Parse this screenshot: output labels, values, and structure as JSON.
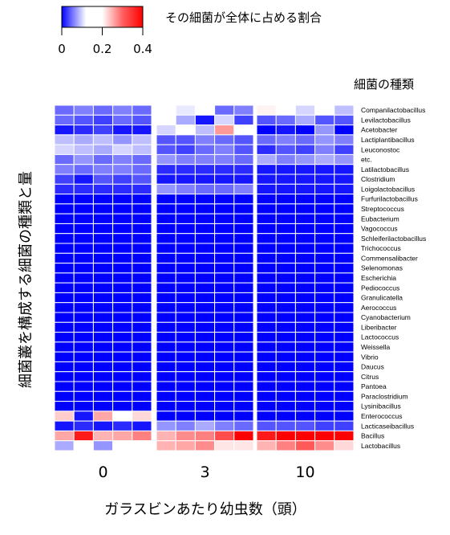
{
  "chart_data": {
    "type": "heatmap",
    "legend": {
      "title": "その細菌が全体に占める割合",
      "ticks": [
        "0",
        "0.2",
        "0.4"
      ],
      "range": [
        0,
        0.4
      ],
      "colors": {
        "low": "#0000ff",
        "mid": "#ffffff",
        "high": "#ff0000"
      }
    },
    "row_header": "細菌の種類",
    "ylabel": "細菌叢を構成する細菌の種類と量",
    "xlabel": "ガラスビンあたり幼虫数（頭）",
    "groups": [
      "0",
      "3",
      "10"
    ],
    "columns_per_group": 5,
    "rows": [
      "Companilactobacillus",
      "Levilactobacillus",
      "Acetobacter",
      "Lactiplantibacillus",
      "Leuconostoc",
      "etc.",
      "Latilactobacillus",
      "Clostridium",
      "Loigolactobacillus",
      "Furfurilactobacillus",
      "Streptococcus",
      "Eubacterium",
      "Vagococcus",
      "Schleiferilactobacillus",
      "Trichococcus",
      "Commensalibacter",
      "Selenomonas",
      "Escherichia",
      "Pediococcus",
      "Granulicatella",
      "Aerococcus",
      "Cyanobacterium",
      "Liberibacter",
      "Lactococcus",
      "Weissella",
      "Vibrio",
      "Daucus",
      "Citrus",
      "Pantoea",
      "Paraclostridium",
      "Lysinibacillus",
      "Enterococcus",
      "Lacticaseibacillus",
      "Bacillus",
      "Lactobacillus"
    ],
    "values": [
      [
        0.05,
        0.06,
        0.05,
        0.06,
        0.05,
        0.12,
        0.11,
        0.18,
        0.05,
        0.06,
        0.21,
        0.12,
        0.1,
        0.12,
        0.09
      ],
      [
        0.05,
        0.04,
        0.03,
        0.05,
        0.04,
        0.12,
        0.08,
        0.01,
        0.1,
        0.03,
        0.04,
        0.05,
        0.08,
        0.04,
        0.04
      ],
      [
        0.01,
        0.02,
        0.03,
        0.01,
        0.01,
        0.1,
        0.13,
        0.09,
        0.28,
        0.18,
        0.0,
        0.01,
        0.0,
        0.07,
        0.0
      ],
      [
        0.09,
        0.08,
        0.09,
        0.07,
        0.09,
        0.04,
        0.04,
        0.06,
        0.05,
        0.04,
        0.05,
        0.06,
        0.05,
        0.07,
        0.06
      ],
      [
        0.1,
        0.09,
        0.08,
        0.1,
        0.09,
        0.04,
        0.03,
        0.05,
        0.06,
        0.04,
        0.02,
        0.04,
        0.03,
        0.06,
        0.03
      ],
      [
        0.05,
        0.07,
        0.05,
        0.06,
        0.05,
        0.07,
        0.06,
        0.06,
        0.06,
        0.05,
        0.08,
        0.06,
        0.07,
        0.08,
        0.07
      ],
      [
        0.06,
        0.05,
        0.06,
        0.06,
        0.05,
        0.02,
        0.02,
        0.02,
        0.02,
        0.02,
        0.01,
        0.01,
        0.01,
        0.01,
        0.01
      ],
      [
        0.03,
        0.01,
        0.04,
        0.03,
        0.04,
        0.01,
        0.01,
        0.01,
        0.01,
        0.01,
        0.01,
        0.01,
        0.01,
        0.01,
        0.01
      ],
      [
        0.02,
        0.02,
        0.02,
        0.02,
        0.02,
        0.07,
        0.06,
        0.05,
        0.05,
        0.06,
        0.01,
        0.01,
        0.01,
        0.01,
        0.01
      ],
      [
        0.0,
        0.0,
        0.0,
        0.0,
        0.0,
        0.0,
        0.0,
        0.0,
        0.0,
        0.0,
        0.0,
        0.0,
        0.0,
        0.0,
        0.0
      ],
      [
        0.0,
        0.0,
        0.0,
        0.0,
        0.0,
        0.0,
        0.0,
        0.0,
        0.0,
        0.0,
        0.0,
        0.0,
        0.0,
        0.0,
        0.0
      ],
      [
        0.0,
        0.0,
        0.0,
        0.0,
        0.0,
        0.0,
        0.0,
        0.0,
        0.0,
        0.0,
        0.0,
        0.0,
        0.0,
        0.0,
        0.0
      ],
      [
        0.0,
        0.0,
        0.0,
        0.0,
        0.0,
        0.0,
        0.0,
        0.0,
        0.0,
        0.0,
        0.0,
        0.0,
        0.0,
        0.0,
        0.0
      ],
      [
        0.0,
        0.0,
        0.0,
        0.0,
        0.0,
        0.0,
        0.0,
        0.0,
        0.0,
        0.0,
        0.0,
        0.0,
        0.0,
        0.0,
        0.0
      ],
      [
        0.0,
        0.0,
        0.0,
        0.0,
        0.0,
        0.0,
        0.0,
        0.0,
        0.0,
        0.0,
        0.0,
        0.0,
        0.0,
        0.0,
        0.0
      ],
      [
        0.0,
        0.0,
        0.0,
        0.0,
        0.0,
        0.0,
        0.0,
        0.0,
        0.0,
        0.0,
        0.0,
        0.0,
        0.0,
        0.0,
        0.0
      ],
      [
        0.0,
        0.0,
        0.0,
        0.0,
        0.0,
        0.0,
        0.0,
        0.0,
        0.0,
        0.0,
        0.0,
        0.0,
        0.0,
        0.0,
        0.0
      ],
      [
        0.0,
        0.0,
        0.0,
        0.0,
        0.0,
        0.0,
        0.0,
        0.0,
        0.0,
        0.0,
        0.0,
        0.0,
        0.0,
        0.0,
        0.0
      ],
      [
        0.0,
        0.0,
        0.0,
        0.0,
        0.0,
        0.0,
        0.0,
        0.0,
        0.0,
        0.0,
        0.0,
        0.0,
        0.0,
        0.0,
        0.0
      ],
      [
        0.0,
        0.0,
        0.0,
        0.0,
        0.0,
        0.0,
        0.0,
        0.0,
        0.0,
        0.0,
        0.0,
        0.0,
        0.0,
        0.0,
        0.0
      ],
      [
        0.0,
        0.0,
        0.0,
        0.0,
        0.0,
        0.0,
        0.0,
        0.0,
        0.0,
        0.0,
        0.0,
        0.0,
        0.0,
        0.0,
        0.0
      ],
      [
        0.0,
        0.0,
        0.0,
        0.0,
        0.0,
        0.0,
        0.0,
        0.0,
        0.0,
        0.0,
        0.0,
        0.0,
        0.0,
        0.0,
        0.0
      ],
      [
        0.0,
        0.0,
        0.0,
        0.0,
        0.0,
        0.0,
        0.0,
        0.0,
        0.0,
        0.0,
        0.0,
        0.0,
        0.0,
        0.0,
        0.0
      ],
      [
        0.0,
        0.0,
        0.0,
        0.0,
        0.0,
        0.0,
        0.0,
        0.0,
        0.0,
        0.0,
        0.0,
        0.0,
        0.0,
        0.0,
        0.0
      ],
      [
        0.0,
        0.0,
        0.0,
        0.0,
        0.0,
        0.0,
        0.0,
        0.0,
        0.0,
        0.0,
        0.0,
        0.0,
        0.0,
        0.0,
        0.0
      ],
      [
        0.0,
        0.0,
        0.0,
        0.0,
        0.0,
        0.0,
        0.0,
        0.0,
        0.0,
        0.0,
        0.0,
        0.0,
        0.0,
        0.0,
        0.0
      ],
      [
        0.0,
        0.0,
        0.0,
        0.0,
        0.0,
        0.0,
        0.0,
        0.0,
        0.0,
        0.0,
        0.0,
        0.0,
        0.0,
        0.0,
        0.0
      ],
      [
        0.0,
        0.0,
        0.0,
        0.0,
        0.0,
        0.0,
        0.0,
        0.0,
        0.0,
        0.0,
        0.0,
        0.0,
        0.0,
        0.0,
        0.0
      ],
      [
        0.0,
        0.0,
        0.0,
        0.0,
        0.0,
        0.0,
        0.0,
        0.0,
        0.0,
        0.0,
        0.0,
        0.0,
        0.0,
        0.0,
        0.0
      ],
      [
        0.0,
        0.0,
        0.0,
        0.0,
        0.0,
        0.0,
        0.0,
        0.0,
        0.0,
        0.0,
        0.0,
        0.0,
        0.0,
        0.0,
        0.0
      ],
      [
        0.0,
        0.0,
        0.0,
        0.0,
        0.0,
        0.0,
        0.0,
        0.0,
        0.0,
        0.0,
        0.0,
        0.0,
        0.0,
        0.0,
        0.0
      ],
      [
        0.24,
        0.01,
        0.27,
        0.18,
        0.23,
        0.0,
        0.0,
        0.0,
        0.0,
        0.0,
        0.0,
        0.0,
        0.0,
        0.0,
        0.0
      ],
      [
        0.01,
        0.02,
        0.01,
        0.02,
        0.01,
        0.07,
        0.06,
        0.08,
        0.06,
        0.05,
        0.04,
        0.04,
        0.04,
        0.03,
        0.03
      ],
      [
        0.27,
        0.38,
        0.26,
        0.27,
        0.3,
        0.26,
        0.29,
        0.3,
        0.34,
        0.4,
        0.38,
        0.4,
        0.4,
        0.4,
        0.4
      ],
      [
        0.08,
        0.19,
        0.07,
        0.18,
        0.15,
        0.26,
        0.27,
        0.29,
        0.22,
        0.22,
        0.26,
        0.3,
        0.33,
        0.29,
        0.23
      ]
    ]
  }
}
